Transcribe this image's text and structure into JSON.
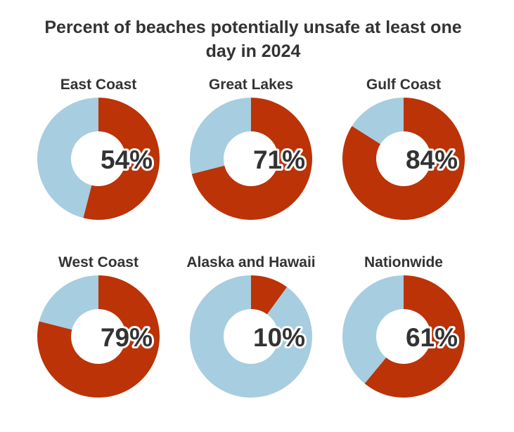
{
  "colors": {
    "unsafe": "#bb3307",
    "safe": "#a7cde0",
    "text": "#333333",
    "background": "#ffffff"
  },
  "chart_data": {
    "type": "pie",
    "title": "Percent of beaches potentially unsafe at least one day in 2024",
    "series": [
      {
        "name": "East Coast",
        "value": 54,
        "label": "54%"
      },
      {
        "name": "Great Lakes",
        "value": 71,
        "label": "71%"
      },
      {
        "name": "Gulf Coast",
        "value": 84,
        "label": "84%"
      },
      {
        "name": "West Coast",
        "value": 79,
        "label": "79%"
      },
      {
        "name": "Alaska and Hawaii",
        "value": 10,
        "label": "10%"
      },
      {
        "name": "Nationwide",
        "value": 61,
        "label": "61%"
      }
    ]
  }
}
